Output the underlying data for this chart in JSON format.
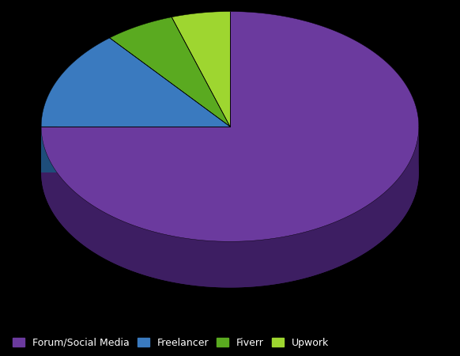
{
  "labels": [
    "Forum/Social Media",
    "Freelancer",
    "Fiverr",
    "Upwork"
  ],
  "values": [
    75,
    14,
    6,
    5
  ],
  "colors": [
    "#6b3a9e",
    "#3a7abf",
    "#5aaa20",
    "#9ed630"
  ],
  "shadow_colors": [
    "#3d1e62",
    "#1e4d7a",
    "#2f6610",
    "#5a8010"
  ],
  "background_color": "#000000",
  "legend_text_color": "#ffffff",
  "startangle": 90,
  "figsize": [
    5.82,
    4.5
  ],
  "dpi": 100
}
